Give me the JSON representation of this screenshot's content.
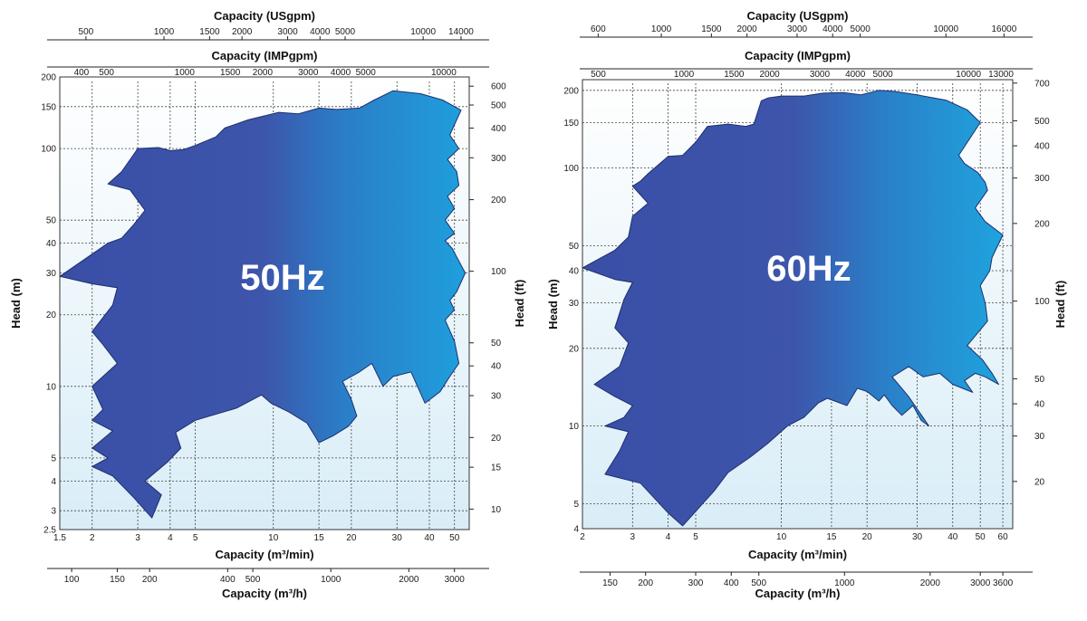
{
  "chart_data": [
    {
      "type": "area",
      "title": "",
      "label": "50Hz",
      "x_scale": "log",
      "y_scale": "log",
      "grid": true,
      "xlim": [
        1.5,
        57
      ],
      "ylim": [
        2.5,
        200
      ],
      "xlabel": "Capacity (m³/min)",
      "ylabel": "Head (m)",
      "x_ticks": [
        "1.5",
        "2",
        "3",
        "4",
        "5",
        "10",
        "15",
        "20",
        "30",
        "40",
        "50"
      ],
      "y_ticks": [
        "2.5",
        "3",
        "4",
        "5",
        "10",
        "20",
        "30",
        "40",
        "50",
        "100",
        "150",
        "200"
      ],
      "secondary_axes": {
        "top_usgpm": {
          "label": "Capacity (USgpm)",
          "ticks": [
            "500",
            "1000",
            "1500",
            "2000",
            "3000",
            "4000",
            "5000",
            "10000",
            "14000"
          ]
        },
        "top_impgpm": {
          "label": "Capacity (IMPgpm)",
          "ticks": [
            "400",
            "500",
            "1000",
            "1500",
            "2000",
            "3000",
            "4000",
            "5000",
            "10000"
          ]
        },
        "bottom_m3h": {
          "label": "Capacity (m³/h)",
          "ticks": [
            "100",
            "150",
            "200",
            "400",
            "500",
            "1000",
            "2000",
            "3000"
          ]
        },
        "right_ft": {
          "label": "Head (ft)",
          "ticks": [
            "10",
            "15",
            "20",
            "30",
            "40",
            "50",
            "100",
            "200",
            "300",
            "400",
            "500",
            "600"
          ]
        }
      },
      "region_colors": [
        "#3a4ea6",
        "#1f9fdc"
      ],
      "coverage_region": [
        [
          1.5,
          29
        ],
        [
          2.0,
          27
        ],
        [
          2.5,
          26
        ],
        [
          2.4,
          22
        ],
        [
          2.0,
          17
        ],
        [
          2.2,
          15
        ],
        [
          2.5,
          12.5
        ],
        [
          2.0,
          10
        ],
        [
          2.2,
          8
        ],
        [
          2.0,
          7.2
        ],
        [
          2.4,
          6.5
        ],
        [
          2.0,
          5.5
        ],
        [
          2.3,
          5
        ],
        [
          2.0,
          4.6
        ],
        [
          2.4,
          4.2
        ],
        [
          2.9,
          3.4
        ],
        [
          3.4,
          2.8
        ],
        [
          3.7,
          3.5
        ],
        [
          3.2,
          4.0
        ],
        [
          3.9,
          4.8
        ],
        [
          4.4,
          5.5
        ],
        [
          4.2,
          6.4
        ],
        [
          5.0,
          7.2
        ],
        [
          7.2,
          8.1
        ],
        [
          9.0,
          9.2
        ],
        [
          9.8,
          8.5
        ],
        [
          11.5,
          7.8
        ],
        [
          13.5,
          7.0
        ],
        [
          15.0,
          5.8
        ],
        [
          17.0,
          6.2
        ],
        [
          19.5,
          6.8
        ],
        [
          21.0,
          7.5
        ],
        [
          20.0,
          8.8
        ],
        [
          18.5,
          10.5
        ],
        [
          21.5,
          11.5
        ],
        [
          24.0,
          12.5
        ],
        [
          26.5,
          10.0
        ],
        [
          29.0,
          11.0
        ],
        [
          34.0,
          11.5
        ],
        [
          38.5,
          8.5
        ],
        [
          44.0,
          9.5
        ],
        [
          48.0,
          11.0
        ],
        [
          52.0,
          12.5
        ],
        [
          50.0,
          15.5
        ],
        [
          46.0,
          19.0
        ],
        [
          50.0,
          21.0
        ],
        [
          48.0,
          23.0
        ],
        [
          51.0,
          25.0
        ],
        [
          55.0,
          30.0
        ],
        [
          49.0,
          38.0
        ],
        [
          46.0,
          41.0
        ],
        [
          50.0,
          44.0
        ],
        [
          46.0,
          50.0
        ],
        [
          50.0,
          56.0
        ],
        [
          47.0,
          63.0
        ],
        [
          52.0,
          70.0
        ],
        [
          51.0,
          80.0
        ],
        [
          47.0,
          90.0
        ],
        [
          52.0,
          100.0
        ],
        [
          48.0,
          114.0
        ],
        [
          53.0,
          145.0
        ],
        [
          45.0,
          160.0
        ],
        [
          37.0,
          170.0
        ],
        [
          29.0,
          175.0
        ],
        [
          24.5,
          160.0
        ],
        [
          21.5,
          148.0
        ],
        [
          17.5,
          146.0
        ],
        [
          15.0,
          148.0
        ],
        [
          12.5,
          140.0
        ],
        [
          10.5,
          142.0
        ],
        [
          8.0,
          132.0
        ],
        [
          6.5,
          122.0
        ],
        [
          6.0,
          112.0
        ],
        [
          5.0,
          103.0
        ],
        [
          4.5,
          99.0
        ],
        [
          4.0,
          98.0
        ],
        [
          3.6,
          101.0
        ],
        [
          3.0,
          100.0
        ],
        [
          2.6,
          80.0
        ],
        [
          2.3,
          71.0
        ],
        [
          2.8,
          67.0
        ],
        [
          3.2,
          55.0
        ],
        [
          2.9,
          48.0
        ],
        [
          2.6,
          42.0
        ],
        [
          2.3,
          40.0
        ],
        [
          2.0,
          36.0
        ]
      ]
    },
    {
      "type": "area",
      "title": "",
      "label": "60Hz",
      "x_scale": "log",
      "y_scale": "log",
      "grid": true,
      "xlim": [
        2,
        65
      ],
      "ylim": [
        4,
        220
      ],
      "xlabel": "Capacity (m³/min)",
      "ylabel": "Head (m)",
      "x_ticks": [
        "2",
        "3",
        "4",
        "5",
        "10",
        "15",
        "20",
        "30",
        "40",
        "50",
        "60"
      ],
      "y_ticks": [
        "4",
        "5",
        "10",
        "20",
        "30",
        "40",
        "50",
        "100",
        "150",
        "200"
      ],
      "secondary_axes": {
        "top_usgpm": {
          "label": "Capacity (USgpm)",
          "ticks": [
            "600",
            "1000",
            "1500",
            "2000",
            "3000",
            "4000",
            "5000",
            "10000",
            "16000"
          ]
        },
        "top_impgpm": {
          "label": "Capacity (IMPgpm)",
          "ticks": [
            "500",
            "1000",
            "1500",
            "2000",
            "3000",
            "4000",
            "5000",
            "10000",
            "13000"
          ]
        },
        "bottom_m3h": {
          "label": "Capacity (m³/h)",
          "ticks": [
            "150",
            "200",
            "300",
            "400",
            "500",
            "1000",
            "2000",
            "3000",
            "3600"
          ]
        },
        "right_ft": {
          "label": "Head (ft)",
          "ticks": [
            "20",
            "30",
            "40",
            "50",
            "100",
            "200",
            "300",
            "400",
            "500",
            "700"
          ]
        }
      },
      "region_colors": [
        "#3a4ea6",
        "#1f9fdc"
      ],
      "coverage_region": [
        [
          2.0,
          41
        ],
        [
          2.6,
          37
        ],
        [
          3.0,
          36
        ],
        [
          2.8,
          31
        ],
        [
          2.6,
          24
        ],
        [
          2.9,
          21
        ],
        [
          2.7,
          17
        ],
        [
          2.2,
          14.5
        ],
        [
          2.6,
          13
        ],
        [
          3.0,
          12
        ],
        [
          2.8,
          10.8
        ],
        [
          2.4,
          10
        ],
        [
          2.9,
          9.5
        ],
        [
          2.7,
          8
        ],
        [
          2.4,
          6.5
        ],
        [
          3.2,
          6.0
        ],
        [
          4.0,
          4.6
        ],
        [
          4.5,
          4.1
        ],
        [
          5.2,
          4.9
        ],
        [
          5.8,
          5.6
        ],
        [
          6.5,
          6.6
        ],
        [
          7.8,
          7.6
        ],
        [
          9.0,
          8.6
        ],
        [
          10.5,
          10.0
        ],
        [
          12.0,
          10.8
        ],
        [
          13.5,
          12.3
        ],
        [
          14.5,
          12.8
        ],
        [
          17.0,
          12.0
        ],
        [
          18.5,
          14.0
        ],
        [
          20.0,
          13.6
        ],
        [
          22.0,
          12.5
        ],
        [
          23.0,
          13.2
        ],
        [
          24.5,
          12.0
        ],
        [
          26.5,
          11.0
        ],
        [
          29.0,
          12.0
        ],
        [
          31.0,
          10.5
        ],
        [
          33.0,
          10.0
        ],
        [
          28.0,
          13.0
        ],
        [
          24.5,
          15.5
        ],
        [
          28.0,
          17.0
        ],
        [
          31.5,
          15.5
        ],
        [
          36.0,
          16.0
        ],
        [
          40.0,
          14.5
        ],
        [
          47.0,
          13.5
        ],
        [
          44.0,
          15.0
        ],
        [
          48.0,
          16.0
        ],
        [
          52.0,
          15.5
        ],
        [
          58.0,
          14.5
        ],
        [
          55.0,
          16.0
        ],
        [
          51.0,
          18.0
        ],
        [
          45.0,
          20.5
        ],
        [
          53.0,
          25.5
        ],
        [
          52.0,
          30.0
        ],
        [
          50.0,
          35.0
        ],
        [
          54.0,
          40.0
        ],
        [
          55.0,
          45.0
        ],
        [
          60.0,
          55.0
        ],
        [
          52.0,
          62.0
        ],
        [
          48.0,
          70.0
        ],
        [
          53.0,
          82.0
        ],
        [
          52.0,
          88.0
        ],
        [
          49.0,
          96.0
        ],
        [
          44.0,
          104.0
        ],
        [
          42.0,
          112.0
        ],
        [
          50.0,
          150.0
        ],
        [
          45.0,
          168.0
        ],
        [
          38.0,
          183.0
        ],
        [
          30.0,
          192.0
        ],
        [
          25.0,
          198.0
        ],
        [
          22.0,
          200.0
        ],
        [
          19.0,
          192.0
        ],
        [
          16.5,
          196.0
        ],
        [
          14.0,
          195.0
        ],
        [
          12.0,
          190.0
        ],
        [
          10.0,
          190.0
        ],
        [
          9.0,
          187.0
        ],
        [
          8.5,
          182.0
        ],
        [
          8.0,
          148.0
        ],
        [
          7.5,
          145.0
        ],
        [
          6.5,
          148.0
        ],
        [
          5.5,
          145.0
        ],
        [
          5.0,
          126.0
        ],
        [
          4.5,
          112.0
        ],
        [
          4.0,
          111.0
        ],
        [
          3.4,
          95.0
        ],
        [
          3.2,
          89.0
        ],
        [
          3.0,
          85.0
        ],
        [
          3.4,
          73.0
        ],
        [
          3.0,
          65.0
        ],
        [
          2.9,
          54.0
        ],
        [
          2.6,
          48.0
        ]
      ]
    }
  ]
}
